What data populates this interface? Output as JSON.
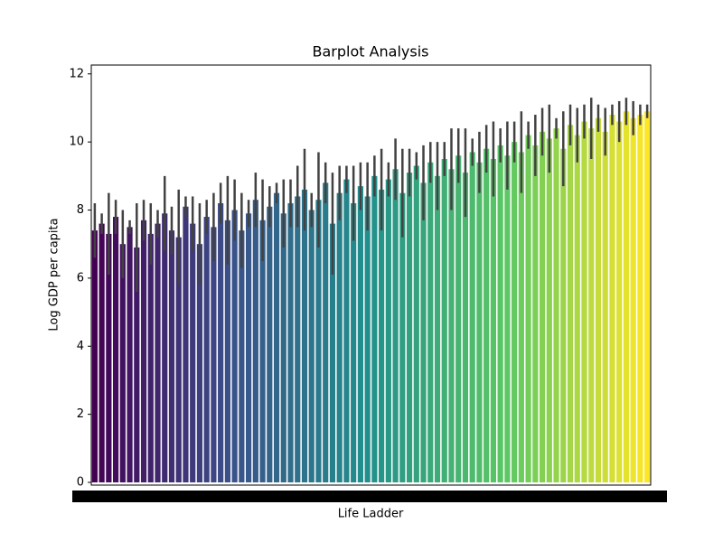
{
  "chart_data": {
    "type": "bar",
    "title": "Barplot Analysis",
    "x_label": "Life Ladder",
    "y_label": "Log GDP per capita",
    "categories": [
      null,
      null,
      null,
      null,
      null,
      null,
      null,
      null,
      null,
      null,
      null,
      null,
      null,
      null,
      null,
      null,
      null,
      null,
      null,
      null,
      null,
      null,
      null,
      null,
      null,
      null,
      null,
      null,
      null,
      null,
      null,
      null,
      null,
      null,
      null,
      null,
      null,
      null,
      null,
      null,
      null,
      null,
      null,
      null,
      null,
      null,
      null,
      null,
      null,
      null,
      null,
      null,
      null,
      null,
      null,
      null,
      null,
      null,
      null,
      null,
      null,
      null,
      null,
      null,
      null,
      null,
      null,
      null,
      null,
      null,
      null,
      null,
      null,
      null,
      null,
      null,
      null,
      null,
      null,
      null
    ],
    "values": [
      7.4,
      7.6,
      7.3,
      7.8,
      7.0,
      7.5,
      6.9,
      7.7,
      7.3,
      7.6,
      7.9,
      7.4,
      7.2,
      8.1,
      7.6,
      7.0,
      7.8,
      7.5,
      8.2,
      7.7,
      8.0,
      7.4,
      7.9,
      8.3,
      7.7,
      8.1,
      8.5,
      7.9,
      8.2,
      8.4,
      8.6,
      8.0,
      8.3,
      8.8,
      7.6,
      8.5,
      8.9,
      8.2,
      8.7,
      8.4,
      9.0,
      8.6,
      8.9,
      9.2,
      8.5,
      9.1,
      9.3,
      8.8,
      9.4,
      9.0,
      9.5,
      9.2,
      9.6,
      9.1,
      9.7,
      9.4,
      9.8,
      9.5,
      9.9,
      9.6,
      10.0,
      9.7,
      10.2,
      9.9,
      10.3,
      10.1,
      10.4,
      9.8,
      10.5,
      10.2,
      10.6,
      10.4,
      10.7,
      10.3,
      10.8,
      10.6,
      10.9,
      10.7,
      10.8,
      10.9
    ],
    "errors": [
      0.8,
      0.3,
      1.2,
      0.5,
      1.0,
      0.2,
      1.3,
      0.6,
      0.9,
      0.4,
      1.1,
      0.7,
      1.4,
      0.3,
      0.8,
      1.2,
      0.5,
      1.0,
      0.6,
      1.3,
      0.9,
      1.1,
      0.4,
      0.8,
      1.2,
      0.6,
      0.3,
      1.0,
      0.7,
      0.9,
      1.2,
      0.5,
      1.4,
      0.6,
      1.5,
      0.8,
      0.4,
      1.1,
      0.7,
      1.0,
      0.6,
      1.2,
      0.5,
      0.9,
      1.3,
      0.7,
      0.4,
      1.1,
      0.6,
      1.0,
      0.5,
      1.2,
      0.8,
      1.3,
      0.4,
      0.9,
      0.7,
      1.1,
      0.5,
      1.0,
      0.6,
      1.2,
      0.4,
      0.9,
      0.7,
      1.0,
      0.3,
      1.1,
      0.6,
      0.8,
      0.5,
      0.9,
      0.4,
      0.7,
      0.3,
      0.6,
      0.4,
      0.5,
      0.3,
      0.2
    ],
    "palette": [
      "#440154",
      "#3b528b",
      "#21918c",
      "#5ec962",
      "#fde725"
    ],
    "error_color": "#424242",
    "ylim": [
      -0.08,
      12.26
    ],
    "yticks": [
      0,
      2,
      4,
      6,
      8,
      10,
      12
    ]
  }
}
